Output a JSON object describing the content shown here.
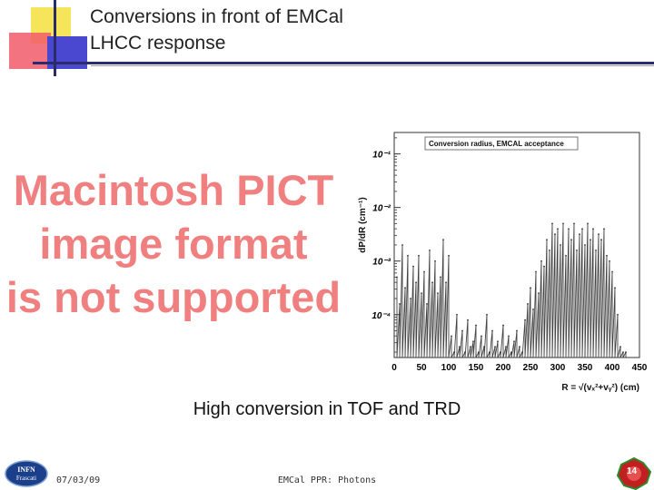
{
  "slide": {
    "title_line1": "Conversions in front of EMCal",
    "title_line2": "LHCC response",
    "placeholder_lines": [
      "Macintosh PICT",
      "image format",
      "is not supported"
    ],
    "caption": "High conversion in TOF and TRD"
  },
  "footer": {
    "date": "07/03/09",
    "center": "EMCal PPR: Photons",
    "page": "14",
    "logo_text_1": "INFN",
    "logo_text_2": "Frascati"
  },
  "chart_data": {
    "type": "line",
    "title": "Conversion radius, EMCAL acceptance",
    "ylabel": "dP/dR (cm⁻¹)",
    "xlabel": "R = √(vₓ²+vᵧ²) (cm)",
    "xlim": [
      0,
      450
    ],
    "ylim_log10": [
      -4.8,
      -0.6
    ],
    "y_scale": "log",
    "x_ticks": [
      "0",
      "50",
      "100",
      "150",
      "200",
      "250",
      "300",
      "350",
      "400",
      "450"
    ],
    "y_ticks": [
      {
        "label": "10⁻¹",
        "value_log10": -1
      },
      {
        "label": "10⁻²",
        "value_log10": -2
      },
      {
        "label": "10⁻³",
        "value_log10": -3
      },
      {
        "label": "10⁻⁴",
        "value_log10": -4
      }
    ],
    "series": [
      {
        "x": [
          5,
          10,
          15,
          20,
          25,
          30,
          35,
          40,
          45,
          50,
          55,
          60,
          65,
          70,
          75,
          80,
          85,
          90,
          95,
          100,
          105,
          110,
          115,
          120,
          125,
          130,
          135,
          140,
          145,
          150,
          155,
          160,
          165,
          170,
          175,
          180,
          185,
          190,
          195,
          200,
          205,
          210,
          215,
          220,
          225,
          230,
          235,
          240,
          245,
          250,
          255,
          260,
          265,
          270,
          275,
          280,
          285,
          290,
          295,
          300,
          305,
          310,
          315,
          320,
          325,
          330,
          335,
          340,
          345,
          350,
          355,
          360,
          365,
          370,
          375,
          380,
          385,
          390,
          395,
          400,
          405,
          410,
          415,
          420,
          425
        ],
        "log10_y": [
          -3.3,
          -3.8,
          -2.7,
          -3.5,
          -2.9,
          -3.7,
          -3.1,
          -3.4,
          -2.9,
          -3.6,
          -3.2,
          -3.8,
          -2.8,
          -3.4,
          -3.0,
          -3.6,
          -3.3,
          -2.6,
          -3.4,
          -2.9,
          -4.4,
          -4.7,
          -4.0,
          -4.6,
          -4.3,
          -4.7,
          -4.1,
          -4.6,
          -4.5,
          -4.2,
          -4.7,
          -4.4,
          -4.6,
          -4.0,
          -4.7,
          -4.3,
          -4.6,
          -4.5,
          -4.7,
          -4.2,
          -4.6,
          -4.4,
          -4.7,
          -4.5,
          -4.3,
          -4.6,
          -4.7,
          -4.1,
          -3.8,
          -3.5,
          -3.9,
          -3.2,
          -3.6,
          -3.0,
          -3.1,
          -2.6,
          -2.8,
          -2.3,
          -2.5,
          -2.4,
          -2.7,
          -2.3,
          -2.9,
          -2.4,
          -2.6,
          -2.3,
          -2.8,
          -2.5,
          -2.4,
          -2.7,
          -2.3,
          -2.6,
          -2.4,
          -2.8,
          -2.5,
          -2.6,
          -2.4,
          -2.9,
          -3.0,
          -3.2,
          -3.5,
          -4.0,
          -4.6,
          -4.7,
          -4.7
        ]
      }
    ]
  }
}
